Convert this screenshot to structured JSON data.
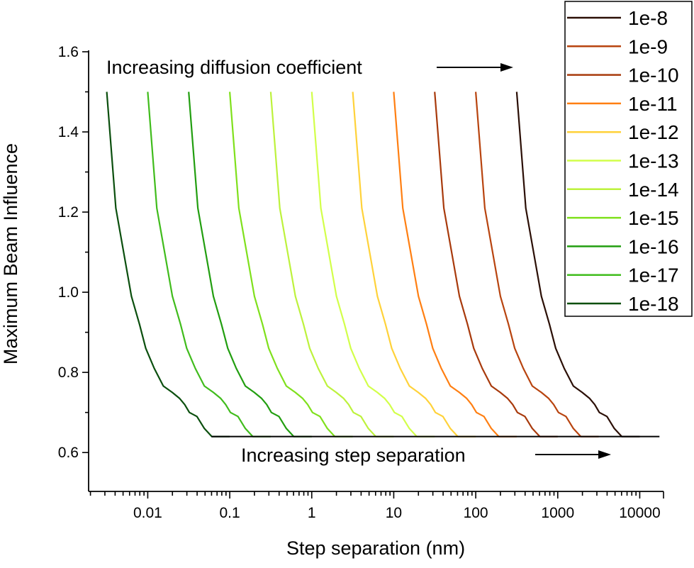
{
  "chart_data": {
    "type": "line",
    "title": "",
    "xlabel": "Step separation (nm)",
    "ylabel": "Maximum Beam Influence",
    "xscale": "log",
    "xlim": [
      0.0019,
      19500
    ],
    "ylim": [
      0.503,
      1.6
    ],
    "xticks": [
      0.01,
      0.1,
      1,
      10,
      100,
      1000,
      10000
    ],
    "xtick_labels": [
      "0.01",
      "0.1",
      "1",
      "10",
      "100",
      "1000",
      "10000"
    ],
    "yticks": [
      0.6,
      0.8,
      1.0,
      1.2,
      1.4,
      1.6
    ],
    "ytick_labels": [
      "0.6",
      "0.8",
      "1.0",
      "1.2",
      "1.4",
      "1.6"
    ],
    "grid": false,
    "legend_position": "top-right",
    "annotations": [
      {
        "text": "Increasing diffusion coefficient",
        "arrow": "right"
      },
      {
        "text": "Increasing step separation",
        "arrow": "right"
      }
    ],
    "floor_line": {
      "x": [
        0.06,
        17400
      ],
      "y": 0.64,
      "color": "#000000"
    },
    "y": [
      1.5,
      1.21,
      0.99,
      0.92,
      0.86,
      0.81,
      0.766,
      0.75,
      0.735,
      0.72,
      0.7,
      0.69,
      0.66,
      0.64,
      0.64
    ],
    "series": [
      {
        "name": "1e-8",
        "color": "#2b0f06",
        "x": [
          316,
          408,
          632,
          793,
          945,
          1200,
          1550,
          1990,
          2450,
          2820,
          3220,
          3980,
          4900,
          6040,
          10000
        ]
      },
      {
        "name": "1e-9",
        "color": "#b8440f",
        "x": [
          100,
          129,
          200,
          251,
          299,
          380,
          490,
          631,
          776,
          891,
          1020,
          1260,
          1550,
          1910,
          3160
        ]
      },
      {
        "name": "1e-10",
        "color": "#a83a0c",
        "x": [
          31.6,
          40.8,
          63.2,
          79.3,
          94.5,
          120,
          155,
          199,
          245,
          282,
          322,
          398,
          490,
          604,
          1000
        ]
      },
      {
        "name": "1e-11",
        "color": "#ff7f12",
        "x": [
          10,
          12.9,
          20,
          25.1,
          29.9,
          38,
          49,
          63.1,
          77.6,
          89.1,
          102,
          126,
          155,
          191,
          316
        ]
      },
      {
        "name": "1e-12",
        "color": "#ffd23a",
        "x": [
          3.16,
          4.08,
          6.32,
          7.93,
          9.45,
          12.0,
          15.5,
          19.9,
          24.5,
          28.2,
          32.2,
          39.8,
          49.0,
          60.4,
          100
        ]
      },
      {
        "name": "1e-13",
        "color": "#d2ff4a",
        "x": [
          1,
          1.29,
          2.0,
          2.51,
          2.99,
          3.8,
          4.9,
          6.31,
          7.76,
          8.91,
          10.2,
          12.6,
          15.5,
          19.1,
          31.6
        ]
      },
      {
        "name": "1e-14",
        "color": "#bdf23c",
        "x": [
          0.316,
          0.408,
          0.632,
          0.793,
          0.945,
          1.2,
          1.55,
          1.99,
          2.45,
          2.82,
          3.22,
          3.98,
          4.9,
          6.04,
          10
        ]
      },
      {
        "name": "1e-15",
        "color": "#7fe01c",
        "x": [
          0.1,
          0.129,
          0.2,
          0.251,
          0.299,
          0.38,
          0.49,
          0.631,
          0.776,
          0.891,
          1.02,
          1.26,
          1.55,
          1.91,
          3.16
        ]
      },
      {
        "name": "1e-16",
        "color": "#229e10",
        "x": [
          0.0316,
          0.0408,
          0.0632,
          0.0793,
          0.0945,
          0.12,
          0.155,
          0.199,
          0.245,
          0.282,
          0.322,
          0.398,
          0.49,
          0.604,
          1.0
        ]
      },
      {
        "name": "1e-17",
        "color": "#40bc1c",
        "x": [
          0.01,
          0.0129,
          0.02,
          0.0251,
          0.0299,
          0.038,
          0.049,
          0.0631,
          0.0776,
          0.0891,
          0.102,
          0.126,
          0.155,
          0.191,
          0.316
        ]
      },
      {
        "name": "1e-18",
        "color": "#0b4f0e",
        "x": [
          0.00316,
          0.00408,
          0.00632,
          0.00793,
          0.00945,
          0.012,
          0.0155,
          0.0199,
          0.0245,
          0.0282,
          0.0322,
          0.0398,
          0.049,
          0.0604,
          0.1
        ]
      }
    ]
  }
}
